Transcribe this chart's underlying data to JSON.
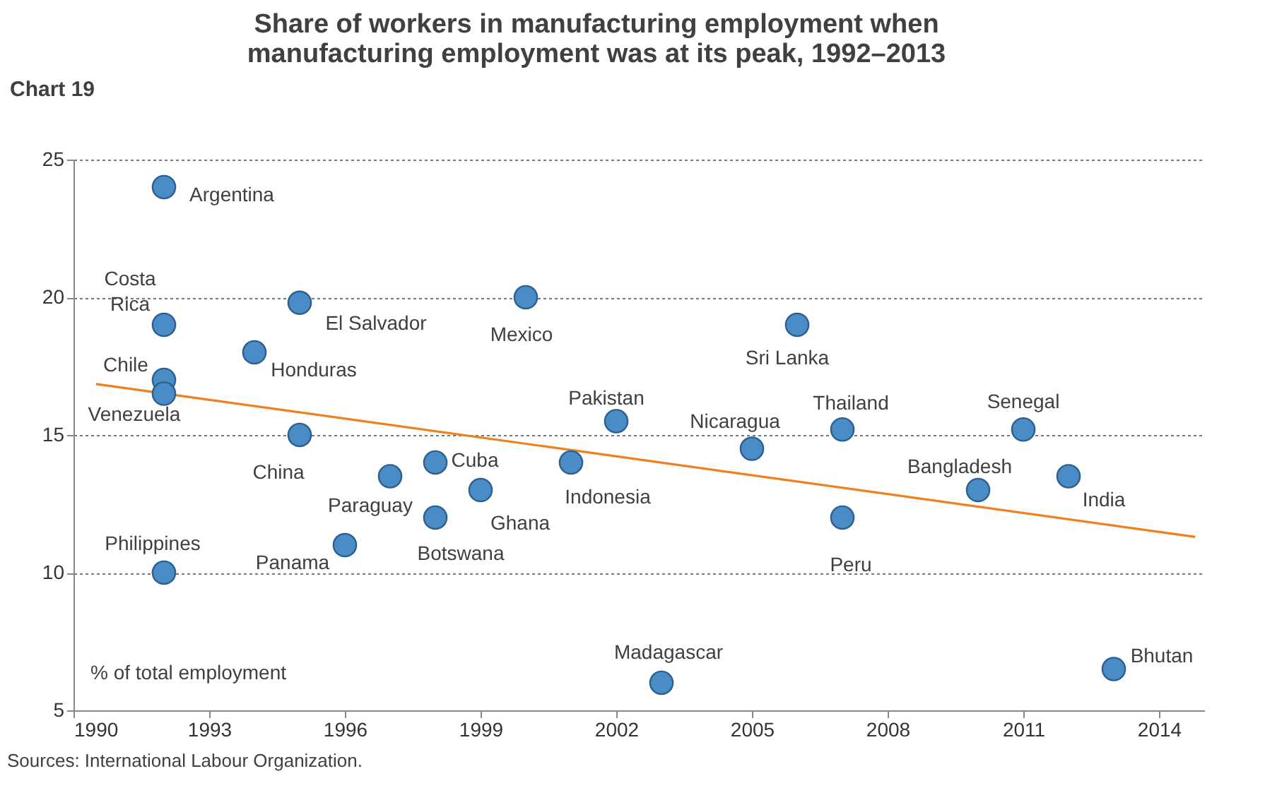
{
  "chart_data": {
    "type": "scatter",
    "title": "Share of workers in manufacturing employment when manufacturing employment was at its peak, 1992–2013",
    "xlim": [
      1990,
      2015
    ],
    "xticks": [
      1990,
      1993,
      1996,
      1999,
      2002,
      2005,
      2008,
      2011,
      2014
    ],
    "ylim": [
      5,
      25
    ],
    "yticks": [
      5,
      10,
      15,
      20,
      25
    ],
    "grid": "y",
    "series": [
      {
        "type": "scatter",
        "marker": "circle",
        "color": "#4a8cc6",
        "x": [
          1992,
          1992,
          1992,
          1992,
          1992,
          1994,
          1995,
          1995,
          1996,
          1997,
          1998,
          1998,
          1999,
          2000,
          2001,
          2002,
          2003,
          2005,
          2006,
          2007,
          2007,
          2010,
          2011,
          2012,
          2013
        ],
        "values": [
          24,
          19,
          17,
          16.5,
          10,
          18,
          19.8,
          15,
          11,
          13.5,
          14,
          12,
          13,
          20,
          14,
          15.5,
          6,
          14.5,
          19,
          15.2,
          12,
          13,
          15.2,
          13.5,
          6.5
        ]
      },
      {
        "type": "line",
        "color": "#f07f1e",
        "x": [
          1990.5,
          2014.8
        ],
        "values": [
          16.85,
          11.3
        ]
      }
    ],
    "annotations": [
      {
        "text": "Argentina",
        "x": 1992,
        "y": 24
      },
      {
        "text": "Costa Rica",
        "x": 1992,
        "y": 19
      },
      {
        "text": "Chile",
        "x": 1992,
        "y": 17
      },
      {
        "text": "Venezuela",
        "x": 1992,
        "y": 16.5
      },
      {
        "text": "Philippines",
        "x": 1992,
        "y": 10
      },
      {
        "text": "Honduras",
        "x": 1994,
        "y": 18
      },
      {
        "text": "El Salvador",
        "x": 1995,
        "y": 19.8
      },
      {
        "text": "China",
        "x": 1995,
        "y": 15
      },
      {
        "text": "Panama",
        "x": 1996,
        "y": 11
      },
      {
        "text": "Paraguay",
        "x": 1997,
        "y": 13.5
      },
      {
        "text": "Cuba",
        "x": 1998,
        "y": 14
      },
      {
        "text": "Botswana",
        "x": 1998,
        "y": 12
      },
      {
        "text": "Ghana",
        "x": 1999,
        "y": 13
      },
      {
        "text": "Mexico",
        "x": 2000,
        "y": 20
      },
      {
        "text": "Indonesia",
        "x": 2001,
        "y": 14
      },
      {
        "text": "Pakistan",
        "x": 2002,
        "y": 15.5
      },
      {
        "text": "Madagascar",
        "x": 2003,
        "y": 6
      },
      {
        "text": "Nicaragua",
        "x": 2005,
        "y": 14.5
      },
      {
        "text": "Sri Lanka",
        "x": 2006,
        "y": 19
      },
      {
        "text": "Thailand",
        "x": 2007,
        "y": 15.2
      },
      {
        "text": "Peru",
        "x": 2007,
        "y": 12
      },
      {
        "text": "Bangladesh",
        "x": 2010,
        "y": 13
      },
      {
        "text": "Senegal",
        "x": 2011,
        "y": 15.2
      },
      {
        "text": "India",
        "x": 2012,
        "y": 13.5
      },
      {
        "text": "Bhutan",
        "x": 2013,
        "y": 6.5
      },
      "Chart 19",
      "% of total employment",
      "Sources: International Labour Organization."
    ]
  }
}
